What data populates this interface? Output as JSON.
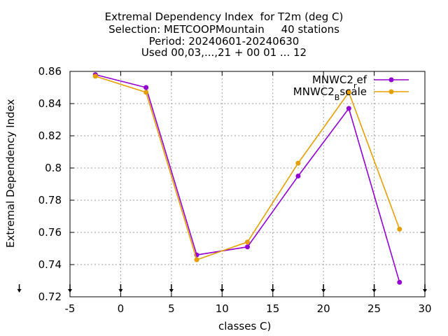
{
  "chart_data": {
    "type": "line",
    "title_lines": [
      "Extremal Dependency Index  for T2m (deg C)",
      "Selection: METCOOPMountain     40 stations",
      "Period: 20240601-20240630",
      "Used 00,03,...,21 + 00 01 ... 12"
    ],
    "xlabel": "classes C)",
    "ylabel": "Extremal Dependency Index",
    "xlim": [
      -5,
      30
    ],
    "ylim": [
      0.72,
      0.86
    ],
    "xticks": [
      -5,
      0,
      5,
      10,
      15,
      20,
      25,
      30
    ],
    "yticks": [
      0.72,
      0.74,
      0.76,
      0.78,
      0.8,
      0.82,
      0.84,
      0.86
    ],
    "ytick_labels": [
      "0.72",
      "0.74",
      "0.76",
      "0.78",
      "0.8",
      "0.82",
      "0.84",
      "0.86"
    ],
    "grid": true,
    "legend_position": "top-right",
    "class_markers_x": [
      -2.5,
      2.5,
      7.5,
      12.5,
      17.5,
      22.5,
      27.5
    ],
    "x": [
      -2.5,
      2.5,
      7.5,
      12.5,
      17.5,
      22.5,
      27.5
    ],
    "series": [
      {
        "name_main": "MNWC2",
        "name_sub": "r",
        "name_tail": "ef",
        "color": "#9400d3",
        "values": [
          0.858,
          0.85,
          0.746,
          0.751,
          0.795,
          0.837,
          0.729
        ]
      },
      {
        "name_main": "MNWC2",
        "name_sub": "B",
        "name_tail": "scale",
        "color": "#e69f00",
        "values": [
          0.857,
          0.847,
          0.743,
          0.754,
          0.803,
          0.847,
          0.762
        ]
      }
    ]
  }
}
